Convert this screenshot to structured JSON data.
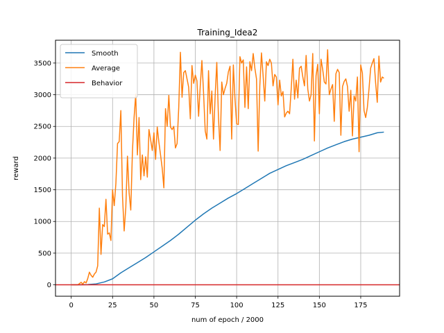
{
  "chart_data": {
    "type": "line",
    "title": "Training_Idea2",
    "xlabel": "num of epoch / 2000",
    "ylabel": "reward",
    "xlim": [
      -9.5,
      198.5
    ],
    "ylim": [
      -180,
      3860
    ],
    "xticks": [
      0,
      25,
      50,
      75,
      100,
      125,
      150,
      175
    ],
    "yticks": [
      0,
      500,
      1000,
      1500,
      2000,
      2500,
      3000,
      3500
    ],
    "grid": true,
    "legend_position": "top-left",
    "series": [
      {
        "name": "Smooth",
        "color": "#1f77b4",
        "x": [
          0,
          5,
          10,
          15,
          20,
          25,
          30,
          35,
          40,
          45,
          50,
          55,
          60,
          65,
          70,
          75,
          80,
          85,
          90,
          95,
          100,
          105,
          110,
          115,
          120,
          125,
          130,
          135,
          140,
          145,
          150,
          155,
          160,
          165,
          170,
          175,
          180,
          185,
          189
        ],
        "values": [
          0,
          1,
          4,
          15,
          45,
          95,
          190,
          270,
          350,
          430,
          520,
          610,
          700,
          800,
          910,
          1020,
          1120,
          1210,
          1290,
          1370,
          1440,
          1520,
          1600,
          1680,
          1760,
          1820,
          1880,
          1930,
          1980,
          2040,
          2100,
          2160,
          2210,
          2260,
          2300,
          2330,
          2360,
          2400,
          2410
        ]
      },
      {
        "name": "Average",
        "color": "#ff7f0e",
        "x": [
          0,
          4,
          5,
          6,
          7,
          8,
          9,
          10,
          11,
          12,
          13,
          14,
          15,
          16,
          17,
          18,
          19,
          20,
          21,
          22,
          23,
          24,
          25,
          26,
          27,
          28,
          29,
          30,
          31,
          32,
          33,
          34,
          35,
          36,
          37,
          38,
          39,
          40,
          41,
          42,
          43,
          44,
          45,
          46,
          47,
          48,
          49,
          50,
          51,
          52,
          53,
          54,
          55,
          56,
          57,
          58,
          59,
          60,
          61,
          62,
          63,
          64,
          65,
          66,
          67,
          68,
          69,
          70,
          71,
          72,
          73,
          74,
          75,
          76,
          77,
          78,
          79,
          80,
          81,
          82,
          83,
          84,
          85,
          86,
          87,
          88,
          89,
          90,
          91,
          92,
          93,
          94,
          95,
          96,
          97,
          98,
          99,
          100,
          101,
          102,
          103,
          104,
          105,
          106,
          107,
          108,
          109,
          110,
          111,
          112,
          113,
          114,
          115,
          116,
          117,
          118,
          119,
          120,
          121,
          122,
          123,
          124,
          125,
          126,
          127,
          128,
          129,
          130,
          131,
          132,
          133,
          134,
          135,
          136,
          137,
          138,
          139,
          140,
          141,
          142,
          143,
          144,
          145,
          146,
          147,
          148,
          149,
          150,
          151,
          152,
          153,
          154,
          155,
          156,
          157,
          158,
          159,
          160,
          161,
          162,
          163,
          164,
          165,
          166,
          167,
          168,
          169,
          170,
          171,
          172,
          173,
          174,
          175,
          176,
          177,
          178,
          179,
          180,
          181,
          182,
          183,
          184,
          185,
          186,
          187,
          188,
          189
        ],
        "values": [
          0,
          0,
          20,
          40,
          10,
          50,
          30,
          100,
          200,
          150,
          120,
          170,
          200,
          300,
          1210,
          480,
          950,
          920,
          1350,
          800,
          820,
          700,
          1500,
          1250,
          1600,
          2230,
          2260,
          2750,
          1400,
          850,
          1220,
          2030,
          1450,
          1180,
          2100,
          2640,
          3010,
          2050,
          2640,
          1660,
          2050,
          1720,
          2020,
          1700,
          2450,
          2290,
          2120,
          2400,
          1980,
          2490,
          2250,
          2050,
          1840,
          1530,
          2780,
          2500,
          2990,
          2490,
          2450,
          2500,
          2160,
          2230,
          2800,
          3670,
          2960,
          3350,
          3380,
          3250,
          3120,
          2620,
          3460,
          3180,
          3310,
          3220,
          2660,
          3140,
          3540,
          3030,
          2430,
          2300,
          3380,
          2700,
          3060,
          2300,
          2980,
          3510,
          2650,
          2120,
          3200,
          3000,
          3100,
          3180,
          3360,
          3450,
          2300,
          3470,
          2930,
          2540,
          2530,
          3600,
          3500,
          3550,
          2800,
          3440,
          2780,
          3520,
          3380,
          3650,
          3420,
          3250,
          2110,
          3140,
          3660,
          3300,
          2900,
          3520,
          3460,
          3560,
          3500,
          3140,
          3320,
          3280,
          2840,
          3230,
          2980,
          3050,
          2650,
          2710,
          2740,
          2700,
          3100,
          3560,
          2930,
          3230,
          2950,
          3420,
          3450,
          3280,
          3140,
          3620,
          3090,
          2900,
          3000,
          3650,
          2270,
          3300,
          3480,
          2700,
          3560,
          3400,
          3200,
          3170,
          3710,
          3000,
          3090,
          3160,
          2580,
          3330,
          3400,
          3350,
          2360,
          3130,
          3210,
          3250,
          3130,
          2740,
          3070,
          2350,
          2980,
          2900,
          3280,
          2100,
          3470,
          3340,
          2750,
          2640,
          2800,
          3090,
          3420,
          3500,
          3570,
          3190,
          2880,
          3610,
          3200,
          3280,
          3260
        ]
      },
      {
        "name": "Behavior",
        "color": "#d62728",
        "x": [
          -9.5,
          198.5
        ],
        "values": [
          0,
          0
        ]
      }
    ]
  }
}
